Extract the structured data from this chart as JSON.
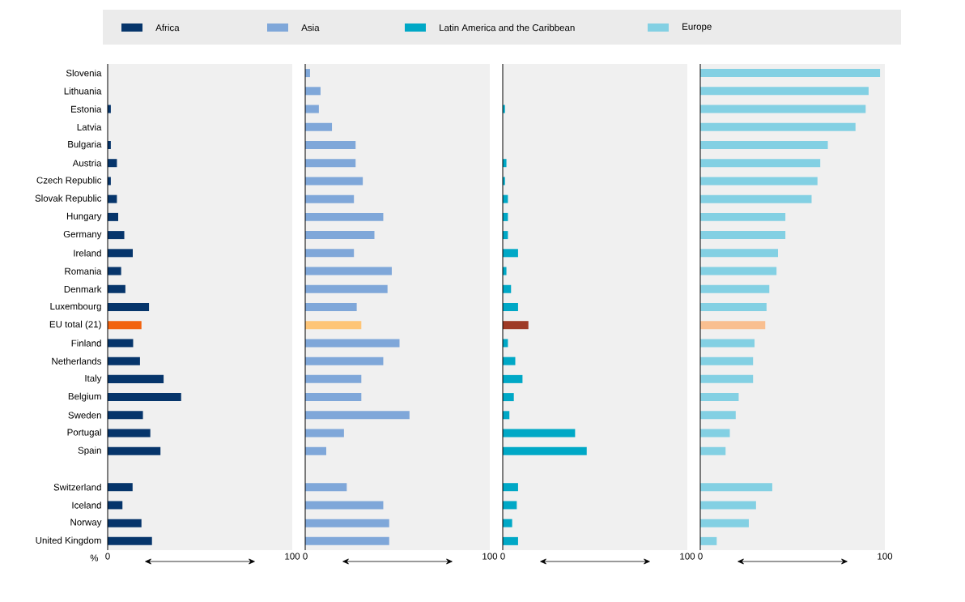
{
  "chart_data": [
    {
      "type": "bar",
      "orientation": "horizontal",
      "xlabel": "%",
      "legend": "top",
      "categories": [
        "Slovenia",
        "Lithuania",
        "Estonia",
        "Latvia",
        "Bulgaria",
        "Austria",
        "Czech Republic",
        "Slovak Republic",
        "Hungary",
        "Germany",
        "Ireland",
        "Romania",
        "Denmark",
        "Luxembourg",
        "EU total (21)",
        "Finland",
        "Netherlands",
        "Italy",
        "Belgium",
        "Sweden",
        "Portugal",
        "Spain",
        null,
        "Switzerland",
        "Iceland",
        "Norway",
        "United Kingdom"
      ],
      "xlim": [
        0,
        100
      ],
      "xticks": [
        0,
        100
      ],
      "series": [
        {
          "name": "Africa",
          "color": "#06356b",
          "colors": [
            "#06356b",
            "#06356b",
            "#06356b",
            "#06356b",
            "#06356b",
            "#06356b",
            "#06356b",
            "#06356b",
            "#06356b",
            "#06356b",
            "#06356b",
            "#06356b",
            "#06356b",
            "#06356b",
            "#f2630f",
            "#06356b",
            "#06356b",
            "#06356b",
            "#06356b",
            "#06356b",
            "#06356b",
            "#06356b",
            "#06356b",
            "#06356b",
            "#06356b",
            "#06356b",
            "#06356b"
          ],
          "values": [
            null,
            null,
            1.7,
            null,
            1.7,
            5,
            1.7,
            5,
            5.7,
            9,
            13.6,
            7.3,
            9.6,
            22.4,
            18.3,
            13.8,
            17.5,
            30.3,
            39.8,
            19.1,
            23.1,
            28.6,
            null,
            13.5,
            8,
            18.3,
            24
          ]
        }
      ]
    },
    {
      "type": "bar",
      "orientation": "horizontal",
      "legend": "top",
      "tick_labels": "x",
      "xlim": [
        0,
        100
      ],
      "xticks": [
        0,
        100
      ],
      "series": [
        {
          "name": "Asia",
          "color": "#7fa7d9",
          "colors": [
            "#7fa7d9",
            "#7fa7d9",
            "#7fa7d9",
            "#7fa7d9",
            "#7fa7d9",
            "#7fa7d9",
            "#7fa7d9",
            "#7fa7d9",
            "#7fa7d9",
            "#7fa7d9",
            "#7fa7d9",
            "#7fa7d9",
            "#7fa7d9",
            "#7fa7d9",
            "#fec577",
            "#7fa7d9",
            "#7fa7d9",
            "#7fa7d9",
            "#7fa7d9",
            "#7fa7d9",
            "#7fa7d9",
            "#7fa7d9",
            "#7fa7d9",
            "#7fa7d9",
            "#7fa7d9",
            "#7fa7d9",
            "#7fa7d9"
          ],
          "values": [
            2.6,
            8.3,
            7.4,
            14.5,
            27.3,
            27.3,
            31.2,
            26.4,
            42.3,
            37.5,
            26.4,
            46.9,
            44.6,
            27.9,
            30.4,
            51.1,
            42.3,
            30.4,
            30.4,
            56.5,
            21,
            11.4,
            null,
            22.5,
            42.3,
            45.5,
            45.5
          ]
        }
      ]
    },
    {
      "type": "bar",
      "orientation": "horizontal",
      "legend": "top",
      "tick_labels": "x",
      "xlim": [
        0,
        100
      ],
      "xticks": [
        0,
        100
      ],
      "series": [
        {
          "name": "Latin America and the Caribbean",
          "color": "#00a8c6",
          "colors": [
            "#00a8c6",
            "#00a8c6",
            "#00a8c6",
            "#00a8c6",
            "#00a8c6",
            "#00a8c6",
            "#00a8c6",
            "#00a8c6",
            "#00a8c6",
            "#00a8c6",
            "#00a8c6",
            "#00a8c6",
            "#00a8c6",
            "#00a8c6",
            "#9e3a26",
            "#00a8c6",
            "#00a8c6",
            "#00a8c6",
            "#00a8c6",
            "#00a8c6",
            "#00a8c6",
            "#00a8c6",
            "#00a8c6",
            "#00a8c6",
            "#00a8c6",
            "#00a8c6",
            "#00a8c6"
          ],
          "values": [
            null,
            null,
            1.2,
            null,
            null,
            2,
            1.2,
            2.8,
            2.8,
            2.8,
            8.3,
            2,
            4.5,
            8.3,
            13.9,
            2.8,
            6.8,
            10.7,
            6,
            3.6,
            39.2,
            45.5,
            null,
            8.3,
            7.6,
            5.1,
            8.3
          ]
        }
      ]
    },
    {
      "type": "bar",
      "orientation": "horizontal",
      "legend": "top",
      "tick_labels": "x",
      "xlim": [
        0,
        100
      ],
      "xticks": [
        0,
        100
      ],
      "series": [
        {
          "name": "Europe",
          "color": "#83d0e3",
          "colors": [
            "#83d0e3",
            "#83d0e3",
            "#83d0e3",
            "#83d0e3",
            "#83d0e3",
            "#83d0e3",
            "#83d0e3",
            "#83d0e3",
            "#83d0e3",
            "#83d0e3",
            "#83d0e3",
            "#83d0e3",
            "#83d0e3",
            "#83d0e3",
            "#f9bf90",
            "#83d0e3",
            "#83d0e3",
            "#83d0e3",
            "#83d0e3",
            "#83d0e3",
            "#83d0e3",
            "#83d0e3",
            "#83d0e3",
            "#83d0e3",
            "#83d0e3",
            "#83d0e3",
            "#83d0e3"
          ],
          "values": [
            97.4,
            91.2,
            89.6,
            84.1,
            69.1,
            65,
            63.5,
            60.3,
            46.1,
            46.1,
            42.1,
            41.3,
            37.4,
            35.9,
            35.2,
            29.4,
            28.6,
            28.6,
            20.8,
            19.2,
            16,
            13.7,
            null,
            39,
            30.2,
            26.3,
            8.9
          ]
        }
      ]
    }
  ]
}
